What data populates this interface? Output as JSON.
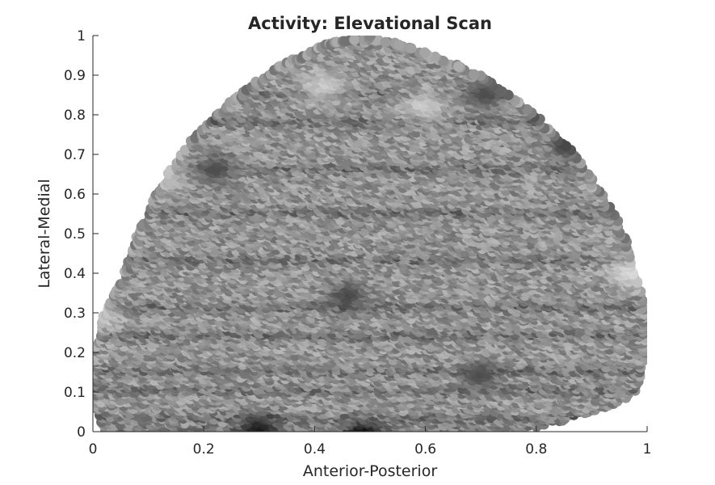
{
  "chart_data": {
    "type": "scatter",
    "title": "Activity: Elevational Scan",
    "xlabel": "Anterior-Posterior",
    "ylabel": "Lateral-Medial",
    "xlim": [
      0,
      1
    ],
    "ylim": [
      0,
      1
    ],
    "xticks": [
      {
        "value": 0,
        "label": "0"
      },
      {
        "value": 0.2,
        "label": "0.2"
      },
      {
        "value": 0.4,
        "label": "0.4"
      },
      {
        "value": 0.6,
        "label": "0.6"
      },
      {
        "value": 0.8,
        "label": "0.8"
      },
      {
        "value": 1,
        "label": "1"
      }
    ],
    "yticks": [
      {
        "value": 0,
        "label": "0"
      },
      {
        "value": 0.1,
        "label": "0.1"
      },
      {
        "value": 0.2,
        "label": "0.2"
      },
      {
        "value": 0.3,
        "label": "0.3"
      },
      {
        "value": 0.4,
        "label": "0.4"
      },
      {
        "value": 0.5,
        "label": "0.5"
      },
      {
        "value": 0.6,
        "label": "0.6"
      },
      {
        "value": 0.7,
        "label": "0.7"
      },
      {
        "value": 0.8,
        "label": "0.8"
      },
      {
        "value": 0.9,
        "label": "0.9"
      },
      {
        "value": 1,
        "label": "1"
      }
    ],
    "grid": false,
    "colormap": "grayscale",
    "region_boundary": [
      [
        0.02,
        0.0
      ],
      [
        0.0,
        0.08
      ],
      [
        0.0,
        0.2
      ],
      [
        0.02,
        0.3
      ],
      [
        0.05,
        0.38
      ],
      [
        0.08,
        0.5
      ],
      [
        0.12,
        0.62
      ],
      [
        0.18,
        0.74
      ],
      [
        0.25,
        0.84
      ],
      [
        0.33,
        0.92
      ],
      [
        0.42,
        0.98
      ],
      [
        0.5,
        1.0
      ],
      [
        0.6,
        0.96
      ],
      [
        0.7,
        0.9
      ],
      [
        0.8,
        0.8
      ],
      [
        0.87,
        0.7
      ],
      [
        0.92,
        0.6
      ],
      [
        0.96,
        0.5
      ],
      [
        0.98,
        0.4
      ],
      [
        1.0,
        0.3
      ],
      [
        1.0,
        0.2
      ],
      [
        0.98,
        0.1
      ],
      [
        0.93,
        0.06
      ],
      [
        0.8,
        0.01
      ],
      [
        0.6,
        0.0
      ],
      [
        0.3,
        0.0
      ]
    ],
    "dark_bands_y": [
      0.04,
      0.11,
      0.16,
      0.25,
      0.32,
      0.44,
      0.56,
      0.67,
      0.79,
      0.86
    ],
    "dark_spots": [
      {
        "x": 0.49,
        "y": 0.0,
        "intensity": 0.12
      },
      {
        "x": 0.3,
        "y": 0.02,
        "intensity": 0.18
      },
      {
        "x": 0.86,
        "y": 0.73,
        "intensity": 0.25
      },
      {
        "x": 0.71,
        "y": 0.86,
        "intensity": 0.3
      },
      {
        "x": 0.22,
        "y": 0.67,
        "intensity": 0.3
      },
      {
        "x": 0.46,
        "y": 0.35,
        "intensity": 0.28
      },
      {
        "x": 0.7,
        "y": 0.15,
        "intensity": 0.3
      }
    ],
    "light_spots": [
      {
        "x": 0.12,
        "y": 0.66,
        "intensity": 0.9
      },
      {
        "x": 0.6,
        "y": 0.83,
        "intensity": 0.85
      },
      {
        "x": 0.42,
        "y": 0.88,
        "intensity": 0.85
      },
      {
        "x": 0.97,
        "y": 0.41,
        "intensity": 0.9
      },
      {
        "x": 0.01,
        "y": 0.3,
        "intensity": 0.85
      }
    ]
  }
}
